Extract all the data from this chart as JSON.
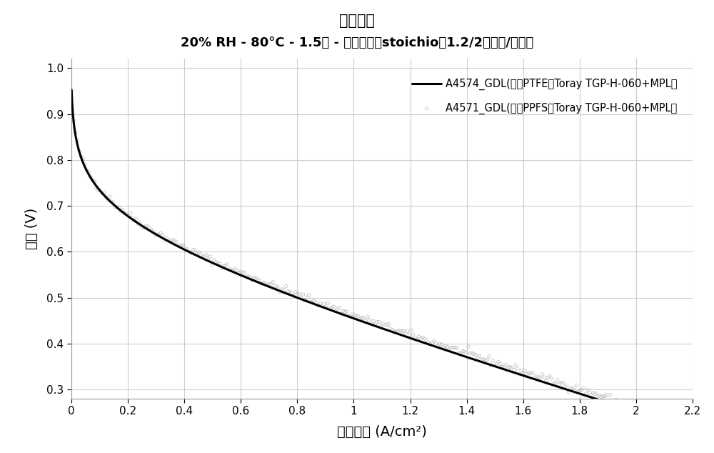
{
  "title": "极化曲线",
  "subtitle": "20% RH - 80°C - 1.5巴 - 化学计量（stoichio）1.2/2（阳极/阴极）",
  "xlabel": "电流密度 (A/cm²)",
  "ylabel": "电压 (V)",
  "xlim": [
    0,
    2.2
  ],
  "ylim": [
    0.28,
    1.02
  ],
  "xticks": [
    0,
    0.2,
    0.4,
    0.6,
    0.8,
    1.0,
    1.2,
    1.4,
    1.6,
    1.8,
    2.0,
    2.2
  ],
  "yticks": [
    0.3,
    0.4,
    0.5,
    0.6,
    0.7,
    0.8,
    0.9,
    1.0
  ],
  "legend1": "A4574_GDL(基于PTFE的Toray TGP-H-060+MPL）",
  "legend2": "A4571_GDL(基于PPFS的Toray TGP-H-060+MPL）",
  "line1_color": "#000000",
  "line2_color": "#aaaaaa",
  "bg_color": "#ffffff",
  "grid_color": "#cccccc"
}
